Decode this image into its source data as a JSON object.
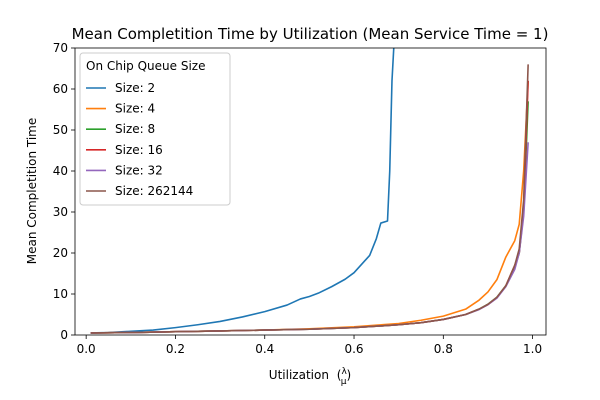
{
  "chart_data": {
    "type": "line",
    "title": "Mean Completition Time by Utilization (Mean Service Time = 1)",
    "xlabel": "Utilization",
    "xlabel_math": {
      "lambda": "λ",
      "mu": "μ"
    },
    "ylabel": "Mean Completition Time",
    "xlim": [
      -0.025,
      1.03
    ],
    "ylim": [
      0,
      70
    ],
    "xticks": [
      0.0,
      0.2,
      0.4,
      0.6,
      0.8,
      1.0
    ],
    "xtick_labels": [
      "0.0",
      "0.2",
      "0.4",
      "0.6",
      "0.8",
      "1.0"
    ],
    "yticks": [
      0,
      10,
      20,
      30,
      40,
      50,
      60,
      70
    ],
    "ytick_labels": [
      "0",
      "10",
      "20",
      "30",
      "40",
      "50",
      "60",
      "70"
    ],
    "grid": false,
    "legend": {
      "title": "On Chip Queue Size",
      "placement": "top-left"
    },
    "series": [
      {
        "name": "Size: 2",
        "color": "#1f77b4",
        "points": [
          [
            0.01,
            0.5
          ],
          [
            0.05,
            0.6
          ],
          [
            0.1,
            0.9
          ],
          [
            0.15,
            1.2
          ],
          [
            0.2,
            1.8
          ],
          [
            0.25,
            2.5
          ],
          [
            0.3,
            3.3
          ],
          [
            0.35,
            4.4
          ],
          [
            0.4,
            5.7
          ],
          [
            0.45,
            7.3
          ],
          [
            0.48,
            8.8
          ],
          [
            0.5,
            9.4
          ],
          [
            0.52,
            10.2
          ],
          [
            0.55,
            11.8
          ],
          [
            0.58,
            13.6
          ],
          [
            0.6,
            15.2
          ],
          [
            0.62,
            17.6
          ],
          [
            0.635,
            19.4
          ],
          [
            0.65,
            23.5
          ],
          [
            0.66,
            27.3
          ],
          [
            0.675,
            27.8
          ],
          [
            0.68,
            40.0
          ],
          [
            0.685,
            62.0
          ],
          [
            0.69,
            72.0
          ]
        ]
      },
      {
        "name": "Size: 4",
        "color": "#ff7f0e",
        "points": [
          [
            0.01,
            0.5
          ],
          [
            0.1,
            0.6
          ],
          [
            0.2,
            0.8
          ],
          [
            0.3,
            1.0
          ],
          [
            0.4,
            1.2
          ],
          [
            0.5,
            1.5
          ],
          [
            0.6,
            2.0
          ],
          [
            0.65,
            2.4
          ],
          [
            0.7,
            2.8
          ],
          [
            0.75,
            3.6
          ],
          [
            0.8,
            4.6
          ],
          [
            0.85,
            6.3
          ],
          [
            0.88,
            8.5
          ],
          [
            0.9,
            10.5
          ],
          [
            0.92,
            13.5
          ],
          [
            0.94,
            19.0
          ],
          [
            0.96,
            23.0
          ],
          [
            0.97,
            27.0
          ],
          [
            0.98,
            40.0
          ],
          [
            0.99,
            62.0
          ]
        ]
      },
      {
        "name": "Size: 8",
        "color": "#2ca02c",
        "points": [
          [
            0.01,
            0.5
          ],
          [
            0.1,
            0.6
          ],
          [
            0.2,
            0.8
          ],
          [
            0.3,
            1.0
          ],
          [
            0.4,
            1.2
          ],
          [
            0.5,
            1.4
          ],
          [
            0.6,
            1.8
          ],
          [
            0.7,
            2.5
          ],
          [
            0.75,
            3.0
          ],
          [
            0.8,
            3.8
          ],
          [
            0.85,
            5.0
          ],
          [
            0.88,
            6.3
          ],
          [
            0.9,
            7.5
          ],
          [
            0.92,
            9.2
          ],
          [
            0.94,
            12.0
          ],
          [
            0.96,
            16.5
          ],
          [
            0.97,
            20.0
          ],
          [
            0.98,
            30.0
          ],
          [
            0.99,
            57.0
          ]
        ]
      },
      {
        "name": "Size: 16",
        "color": "#d62728",
        "points": [
          [
            0.01,
            0.5
          ],
          [
            0.1,
            0.6
          ],
          [
            0.2,
            0.8
          ],
          [
            0.3,
            1.0
          ],
          [
            0.4,
            1.2
          ],
          [
            0.5,
            1.4
          ],
          [
            0.6,
            1.8
          ],
          [
            0.7,
            2.5
          ],
          [
            0.75,
            3.0
          ],
          [
            0.8,
            3.8
          ],
          [
            0.85,
            5.0
          ],
          [
            0.88,
            6.3
          ],
          [
            0.9,
            7.4
          ],
          [
            0.92,
            9.1
          ],
          [
            0.94,
            12.0
          ],
          [
            0.96,
            17.0
          ],
          [
            0.97,
            20.0
          ],
          [
            0.98,
            31.0
          ],
          [
            0.99,
            62.0
          ]
        ]
      },
      {
        "name": "Size: 32",
        "color": "#9467bd",
        "points": [
          [
            0.01,
            0.5
          ],
          [
            0.1,
            0.6
          ],
          [
            0.2,
            0.8
          ],
          [
            0.3,
            1.0
          ],
          [
            0.4,
            1.2
          ],
          [
            0.5,
            1.4
          ],
          [
            0.6,
            1.8
          ],
          [
            0.7,
            2.5
          ],
          [
            0.75,
            3.0
          ],
          [
            0.8,
            3.8
          ],
          [
            0.85,
            5.0
          ],
          [
            0.88,
            6.2
          ],
          [
            0.9,
            7.4
          ],
          [
            0.92,
            9.0
          ],
          [
            0.94,
            11.8
          ],
          [
            0.96,
            16.0
          ],
          [
            0.97,
            20.0
          ],
          [
            0.98,
            29.0
          ],
          [
            0.99,
            47.0
          ]
        ]
      },
      {
        "name": "Size: 262144",
        "color": "#8c564b",
        "points": [
          [
            0.01,
            0.5
          ],
          [
            0.1,
            0.6
          ],
          [
            0.2,
            0.8
          ],
          [
            0.3,
            1.0
          ],
          [
            0.4,
            1.2
          ],
          [
            0.5,
            1.4
          ],
          [
            0.6,
            1.8
          ],
          [
            0.7,
            2.5
          ],
          [
            0.75,
            3.0
          ],
          [
            0.8,
            3.8
          ],
          [
            0.85,
            5.0
          ],
          [
            0.88,
            6.3
          ],
          [
            0.9,
            7.5
          ],
          [
            0.92,
            9.2
          ],
          [
            0.94,
            12.0
          ],
          [
            0.96,
            17.0
          ],
          [
            0.97,
            21.0
          ],
          [
            0.98,
            33.0
          ],
          [
            0.99,
            66.0
          ]
        ]
      }
    ]
  }
}
